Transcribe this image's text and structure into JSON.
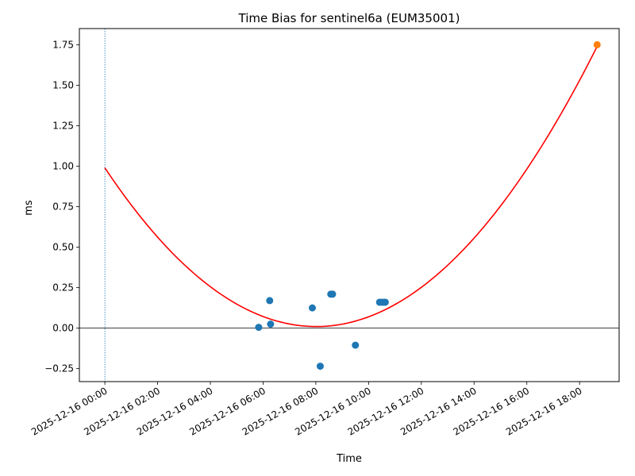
{
  "chart_data": {
    "type": "scatter",
    "title": "Time Bias for sentinel6a (EUM35001)",
    "xlabel": "Time",
    "ylabel": "ms",
    "xlim": [
      "2025-12-15 23:02",
      "2025-12-16 19:30"
    ],
    "ylim": [
      -0.33,
      1.85
    ],
    "x_ticks": [
      "2025-12-16 00:00",
      "2025-12-16 02:00",
      "2025-12-16 04:00",
      "2025-12-16 06:00",
      "2025-12-16 08:00",
      "2025-12-16 10:00",
      "2025-12-16 12:00",
      "2025-12-16 14:00",
      "2025-12-16 16:00",
      "2025-12-16 18:00"
    ],
    "y_ticks": [
      -0.25,
      0.0,
      0.25,
      0.5,
      0.75,
      1.0,
      1.25,
      1.5,
      1.75
    ],
    "y_tick_labels": [
      "−0.25",
      "0.00",
      "0.25",
      "0.50",
      "0.75",
      "1.00",
      "1.25",
      "1.50",
      "1.75"
    ],
    "reference_lines": {
      "horizontal_y": 0,
      "vertical_x": "2025-12-16 00:00"
    },
    "series": [
      {
        "kind": "points",
        "color": "#1f77b4",
        "points": [
          {
            "x": "2025-12-16 05:50",
            "y": 0.005
          },
          {
            "x": "2025-12-16 06:15",
            "y": 0.17
          },
          {
            "x": "2025-12-16 06:17",
            "y": 0.025
          },
          {
            "x": "2025-12-16 07:52",
            "y": 0.125
          },
          {
            "x": "2025-12-16 08:10",
            "y": -0.235
          },
          {
            "x": "2025-12-16 08:34",
            "y": 0.21
          },
          {
            "x": "2025-12-16 08:38",
            "y": 0.21
          },
          {
            "x": "2025-12-16 09:30",
            "y": -0.105
          },
          {
            "x": "2025-12-16 10:25",
            "y": 0.16
          },
          {
            "x": "2025-12-16 10:30",
            "y": 0.16
          },
          {
            "x": "2025-12-16 10:35",
            "y": 0.16
          },
          {
            "x": "2025-12-16 10:38",
            "y": 0.16
          }
        ]
      },
      {
        "kind": "points",
        "color": "#ff7f0e",
        "points": [
          {
            "x": "2025-12-16 18:40",
            "y": 1.75
          }
        ]
      },
      {
        "kind": "curve",
        "color": "#ff0000",
        "fit": "quadratic",
        "points": [
          {
            "x": "2025-12-16 00:00",
            "y": 0.99
          },
          {
            "x": "2025-12-16 07:58",
            "y": 0.01
          },
          {
            "x": "2025-12-16 18:40",
            "y": 1.74
          }
        ]
      }
    ]
  }
}
